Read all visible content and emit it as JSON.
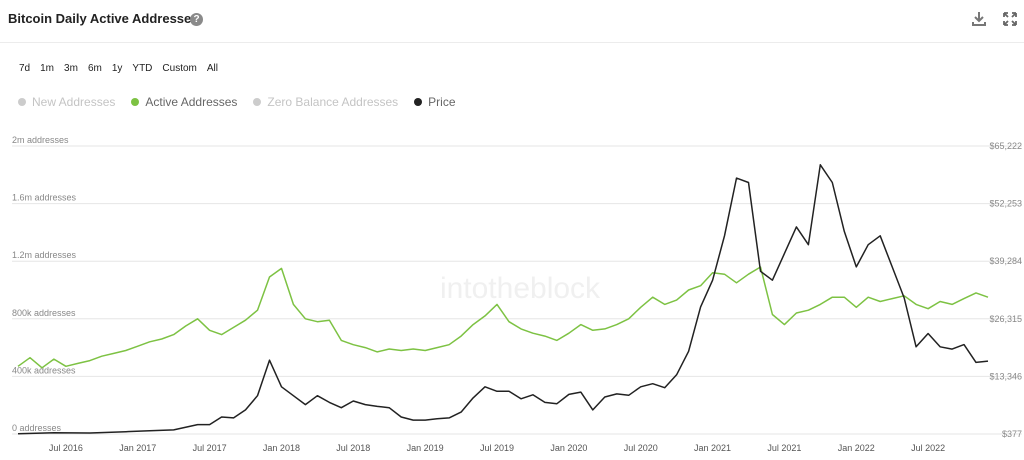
{
  "header": {
    "title": "Bitcoin Daily Active Addresses",
    "help_icon": "question-circle-icon",
    "download_icon": "download-icon",
    "expand_icon": "expand-icon"
  },
  "ranges": [
    "7d",
    "1m",
    "3m",
    "6m",
    "1y",
    "YTD",
    "Custom",
    "All"
  ],
  "legend": [
    {
      "label": "New Addresses",
      "color": "#cccccc",
      "active": false
    },
    {
      "label": "Active Addresses",
      "color": "#7dc243",
      "active": true
    },
    {
      "label": "Zero Balance Addresses",
      "color": "#cccccc",
      "active": false
    },
    {
      "label": "Price",
      "color": "#222222",
      "active": true
    }
  ],
  "watermark": "intotheblock",
  "chart_data": {
    "type": "line",
    "x_ticks": [
      "Jul 2016",
      "Jan 2017",
      "Jul 2017",
      "Jan 2018",
      "Jul 2018",
      "Jan 2019",
      "Jul 2019",
      "Jan 2020",
      "Jul 2020",
      "Jan 2021",
      "Jul 2021",
      "Jan 2022",
      "Jul 2022"
    ],
    "left_ticks": [
      "0 addresses",
      "400k addresses",
      "800k addresses",
      "1.2m addresses",
      "1.6m addresses",
      "2m addresses"
    ],
    "right_ticks": [
      "$377",
      "$13,346",
      "$26,315",
      "$39,284",
      "$52,253",
      "$65,222"
    ],
    "y_left_lim": [
      0,
      2000000
    ],
    "y_right_lim": [
      377,
      65222
    ],
    "x_range": [
      "2016-03",
      "2022-12"
    ],
    "series": [
      {
        "name": "Active Addresses",
        "axis": "left",
        "color": "#7dc243",
        "points": [
          [
            "2016-03",
            470000
          ],
          [
            "2016-04",
            530000
          ],
          [
            "2016-05",
            460000
          ],
          [
            "2016-06",
            520000
          ],
          [
            "2016-07",
            470000
          ],
          [
            "2016-08",
            490000
          ],
          [
            "2016-09",
            510000
          ],
          [
            "2016-10",
            540000
          ],
          [
            "2016-11",
            560000
          ],
          [
            "2016-12",
            580000
          ],
          [
            "2017-01",
            610000
          ],
          [
            "2017-02",
            640000
          ],
          [
            "2017-03",
            660000
          ],
          [
            "2017-04",
            690000
          ],
          [
            "2017-05",
            750000
          ],
          [
            "2017-06",
            800000
          ],
          [
            "2017-07",
            720000
          ],
          [
            "2017-08",
            690000
          ],
          [
            "2017-09",
            740000
          ],
          [
            "2017-10",
            790000
          ],
          [
            "2017-11",
            860000
          ],
          [
            "2017-12",
            1090000
          ],
          [
            "2018-01",
            1150000
          ],
          [
            "2018-02",
            900000
          ],
          [
            "2018-03",
            800000
          ],
          [
            "2018-04",
            780000
          ],
          [
            "2018-05",
            790000
          ],
          [
            "2018-06",
            650000
          ],
          [
            "2018-07",
            620000
          ],
          [
            "2018-08",
            600000
          ],
          [
            "2018-09",
            570000
          ],
          [
            "2018-10",
            590000
          ],
          [
            "2018-11",
            580000
          ],
          [
            "2018-12",
            590000
          ],
          [
            "2019-01",
            580000
          ],
          [
            "2019-02",
            600000
          ],
          [
            "2019-03",
            620000
          ],
          [
            "2019-04",
            680000
          ],
          [
            "2019-05",
            760000
          ],
          [
            "2019-06",
            820000
          ],
          [
            "2019-07",
            900000
          ],
          [
            "2019-08",
            780000
          ],
          [
            "2019-09",
            730000
          ],
          [
            "2019-10",
            700000
          ],
          [
            "2019-11",
            680000
          ],
          [
            "2019-12",
            650000
          ],
          [
            "2020-01",
            700000
          ],
          [
            "2020-02",
            760000
          ],
          [
            "2020-03",
            720000
          ],
          [
            "2020-04",
            730000
          ],
          [
            "2020-05",
            760000
          ],
          [
            "2020-06",
            800000
          ],
          [
            "2020-07",
            880000
          ],
          [
            "2020-08",
            950000
          ],
          [
            "2020-09",
            900000
          ],
          [
            "2020-10",
            930000
          ],
          [
            "2020-11",
            1000000
          ],
          [
            "2020-12",
            1030000
          ],
          [
            "2021-01",
            1120000
          ],
          [
            "2021-02",
            1110000
          ],
          [
            "2021-03",
            1050000
          ],
          [
            "2021-04",
            1110000
          ],
          [
            "2021-05",
            1160000
          ],
          [
            "2021-06",
            830000
          ],
          [
            "2021-07",
            760000
          ],
          [
            "2021-08",
            840000
          ],
          [
            "2021-09",
            860000
          ],
          [
            "2021-10",
            900000
          ],
          [
            "2021-11",
            950000
          ],
          [
            "2021-12",
            950000
          ],
          [
            "2022-01",
            880000
          ],
          [
            "2022-02",
            950000
          ],
          [
            "2022-03",
            920000
          ],
          [
            "2022-04",
            940000
          ],
          [
            "2022-05",
            960000
          ],
          [
            "2022-06",
            900000
          ],
          [
            "2022-07",
            870000
          ],
          [
            "2022-08",
            920000
          ],
          [
            "2022-09",
            900000
          ],
          [
            "2022-10",
            940000
          ],
          [
            "2022-11",
            980000
          ],
          [
            "2022-12",
            950000
          ]
        ]
      },
      {
        "name": "Price",
        "axis": "right",
        "color": "#222222",
        "points": [
          [
            "2016-03",
            420
          ],
          [
            "2016-06",
            670
          ],
          [
            "2016-09",
            600
          ],
          [
            "2016-12",
            900
          ],
          [
            "2017-02",
            1100
          ],
          [
            "2017-04",
            1300
          ],
          [
            "2017-06",
            2500
          ],
          [
            "2017-07",
            2500
          ],
          [
            "2017-08",
            4200
          ],
          [
            "2017-09",
            4000
          ],
          [
            "2017-10",
            5800
          ],
          [
            "2017-11",
            9000
          ],
          [
            "2017-12",
            17000
          ],
          [
            "2018-01",
            11000
          ],
          [
            "2018-02",
            9000
          ],
          [
            "2018-03",
            7000
          ],
          [
            "2018-04",
            9000
          ],
          [
            "2018-05",
            7500
          ],
          [
            "2018-06",
            6300
          ],
          [
            "2018-07",
            7800
          ],
          [
            "2018-08",
            7000
          ],
          [
            "2018-09",
            6600
          ],
          [
            "2018-10",
            6300
          ],
          [
            "2018-11",
            4200
          ],
          [
            "2018-12",
            3500
          ],
          [
            "2019-01",
            3500
          ],
          [
            "2019-02",
            3800
          ],
          [
            "2019-03",
            4000
          ],
          [
            "2019-04",
            5300
          ],
          [
            "2019-05",
            8500
          ],
          [
            "2019-06",
            11000
          ],
          [
            "2019-07",
            10000
          ],
          [
            "2019-08",
            10000
          ],
          [
            "2019-09",
            8300
          ],
          [
            "2019-10",
            9200
          ],
          [
            "2019-11",
            7500
          ],
          [
            "2019-12",
            7200
          ],
          [
            "2020-01",
            9300
          ],
          [
            "2020-02",
            9800
          ],
          [
            "2020-03",
            5800
          ],
          [
            "2020-04",
            8700
          ],
          [
            "2020-05",
            9400
          ],
          [
            "2020-06",
            9100
          ],
          [
            "2020-07",
            11000
          ],
          [
            "2020-08",
            11700
          ],
          [
            "2020-09",
            10800
          ],
          [
            "2020-10",
            13700
          ],
          [
            "2020-11",
            19000
          ],
          [
            "2020-12",
            29000
          ],
          [
            "2021-01",
            35000
          ],
          [
            "2021-02",
            45000
          ],
          [
            "2021-03",
            58000
          ],
          [
            "2021-04",
            57000
          ],
          [
            "2021-05",
            37000
          ],
          [
            "2021-06",
            35000
          ],
          [
            "2021-07",
            41000
          ],
          [
            "2021-08",
            47000
          ],
          [
            "2021-09",
            43000
          ],
          [
            "2021-10",
            61000
          ],
          [
            "2021-11",
            57000
          ],
          [
            "2021-12",
            46000
          ],
          [
            "2022-01",
            38000
          ],
          [
            "2022-02",
            43000
          ],
          [
            "2022-03",
            45000
          ],
          [
            "2022-04",
            38000
          ],
          [
            "2022-05",
            31000
          ],
          [
            "2022-06",
            20000
          ],
          [
            "2022-07",
            23000
          ],
          [
            "2022-08",
            20000
          ],
          [
            "2022-09",
            19500
          ],
          [
            "2022-10",
            20500
          ],
          [
            "2022-11",
            16500
          ],
          [
            "2022-12",
            16800
          ]
        ]
      }
    ]
  }
}
